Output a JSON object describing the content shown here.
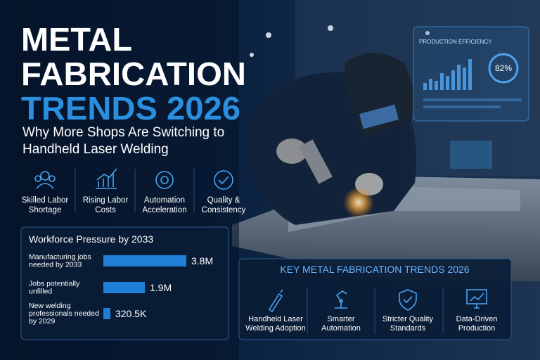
{
  "title_lines": [
    "METAL",
    "FABRICATION",
    "TRENDS 2026"
  ],
  "subtitle_lines": [
    "Why More Shops Are Switching to",
    "Handheld Laser Welding"
  ],
  "drivers": [
    [
      "Skilled Labor",
      "Shortage"
    ],
    [
      "Rising Labor",
      "Costs"
    ],
    [
      "Automation",
      "Acceleration"
    ],
    [
      "Quality &",
      "Consistency"
    ]
  ],
  "hud": {
    "title": "PRODUCTION EFFICIENCY",
    "value": "82%"
  },
  "chart_data": {
    "type": "bar",
    "orientation": "horizontal",
    "title": "Workforce Pressure by 2033",
    "categories": [
      [
        "Manufacturing jobs",
        "needed by 2033"
      ],
      [
        "Jobs potentially",
        "unfilled"
      ],
      [
        "New welding",
        "professionals needed",
        "by 2029"
      ]
    ],
    "values": [
      3800000,
      1900000,
      320500
    ],
    "value_labels": [
      "3.8M",
      "1.9M",
      "320.5K"
    ],
    "color": "#1f7fd6"
  },
  "trends": {
    "title": "KEY METAL FABRICATION TRENDS 2026",
    "items": [
      [
        "Handheld Laser",
        "Welding Adoption"
      ],
      [
        "Smarter",
        "Automation"
      ],
      [
        "Stricter Quality",
        "Standards"
      ],
      [
        "Data-Driven",
        "Production"
      ]
    ]
  }
}
